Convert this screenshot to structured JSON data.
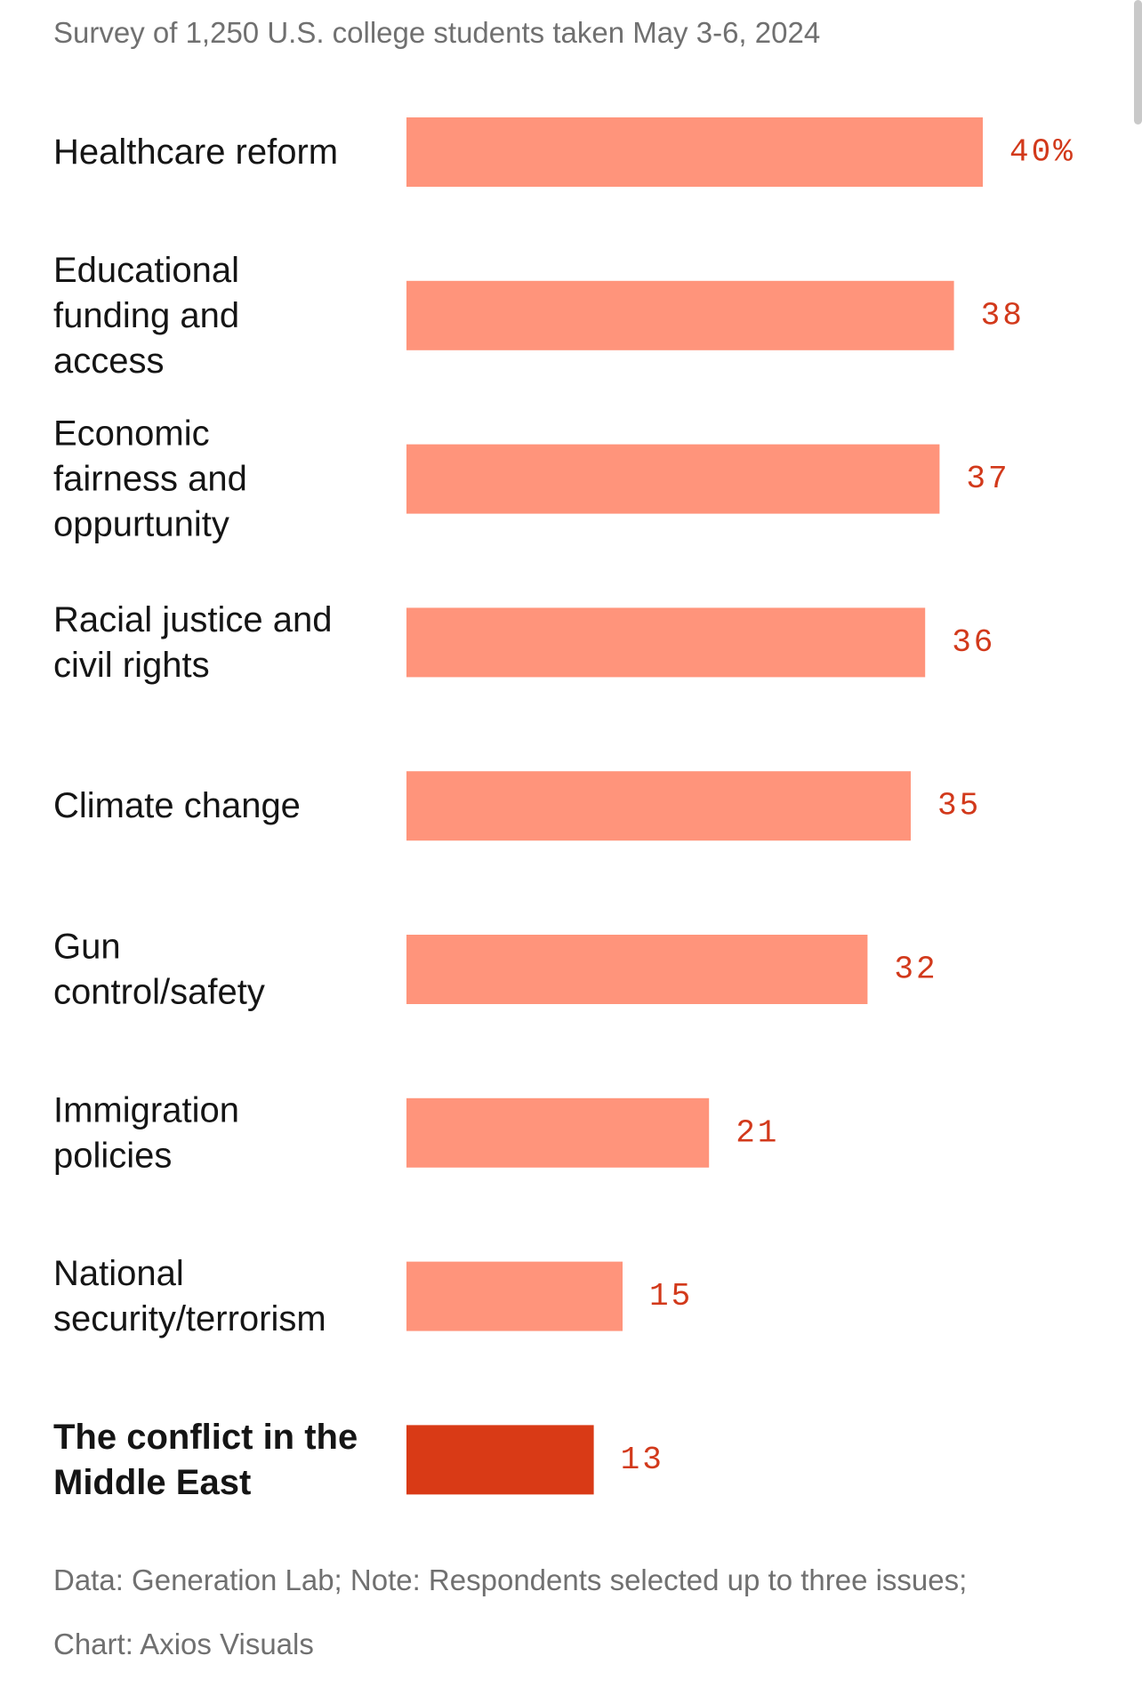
{
  "subtitle": "Survey of 1,250 U.S. college students taken May 3-6, 2024",
  "footer": {
    "note": "Data: Generation Lab; Note: Respondents selected up to three issues;",
    "credit": "Chart: Axios Visuals"
  },
  "colors": {
    "bar": "#ff947b",
    "highlight_bar": "#d93a16",
    "value_text": "#d2391b"
  },
  "chart_data": {
    "type": "bar",
    "orientation": "horizontal",
    "title": "",
    "subtitle": "Survey of 1,250 U.S. college students taken May 3-6, 2024",
    "categories": [
      "Healthcare reform",
      "Educational funding and access",
      "Economic fairness and oppurtunity",
      "Racial justice and civil rights",
      "Climate change",
      "Gun control/safety",
      "Immigration policies",
      "National security/terrorism",
      "The conflict in the Middle East"
    ],
    "label_lines": [
      [
        "Healthcare reform"
      ],
      [
        "Educational",
        "funding and",
        "access"
      ],
      [
        "Economic",
        "fairness and",
        "oppurtunity"
      ],
      [
        "Racial justice and",
        "civil rights"
      ],
      [
        "Climate change"
      ],
      [
        "Gun",
        "control/safety"
      ],
      [
        "Immigration",
        "policies"
      ],
      [
        "National",
        "security/terrorism"
      ],
      [
        "The conflict in the",
        "Middle East"
      ]
    ],
    "values": [
      40,
      38,
      37,
      36,
      35,
      32,
      21,
      15,
      13
    ],
    "value_labels": [
      "40%",
      "38",
      "37",
      "36",
      "35",
      "32",
      "21",
      "15",
      "13"
    ],
    "highlighted": [
      8
    ],
    "unit": "%",
    "xlim": [
      0,
      40
    ],
    "xlabel": "",
    "ylabel": "",
    "grid": false,
    "legend": "none"
  }
}
